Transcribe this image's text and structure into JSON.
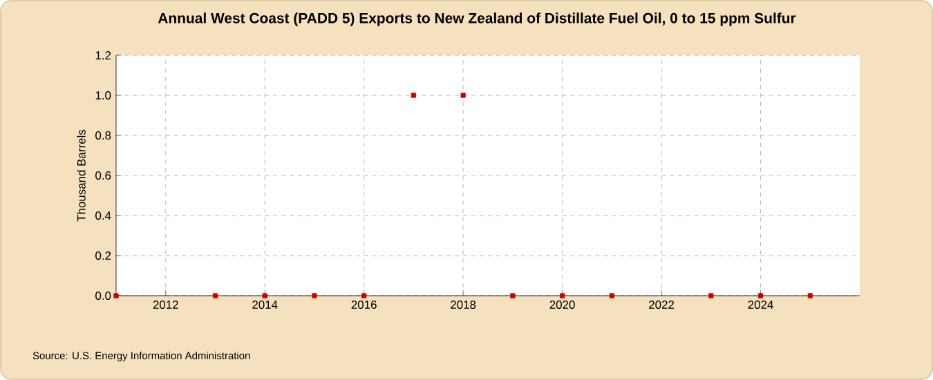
{
  "chart_data": {
    "type": "scatter",
    "title": "Annual West Coast (PADD 5) Exports to New Zealand of Distillate Fuel Oil, 0 to 15 ppm Sulfur",
    "ylabel": "Thousand Barrels",
    "annotations": [
      "Source: U.S. Energy Information Administration"
    ],
    "x": [
      2011,
      2012,
      2013,
      2014,
      2015,
      2016,
      2017,
      2018,
      2019,
      2020,
      2021,
      2022,
      2023,
      2024,
      2025
    ],
    "series": [
      {
        "color": "#cc0000",
        "values": [
          0,
          null,
          0,
          0,
          0,
          0,
          1.0,
          1.0,
          0,
          0,
          0,
          null,
          0,
          0,
          0
        ]
      }
    ],
    "xlim": [
      2011,
      2026
    ],
    "xticks": [
      2012,
      2014,
      2016,
      2018,
      2020,
      2022,
      2024
    ],
    "ylim": [
      0,
      1.2
    ],
    "yticks": [
      {
        "value": 0,
        "label": "0.0"
      },
      {
        "value": 0.2,
        "label": "0.2"
      },
      {
        "value": 0.4,
        "label": "0.4"
      },
      {
        "value": 0.6,
        "label": "0.6"
      },
      {
        "value": 0.8,
        "label": "0.8"
      },
      {
        "value": 1.0,
        "label": "1.0"
      },
      {
        "value": 1.2,
        "label": "1.2"
      }
    ],
    "grid": true,
    "marker": "square"
  }
}
